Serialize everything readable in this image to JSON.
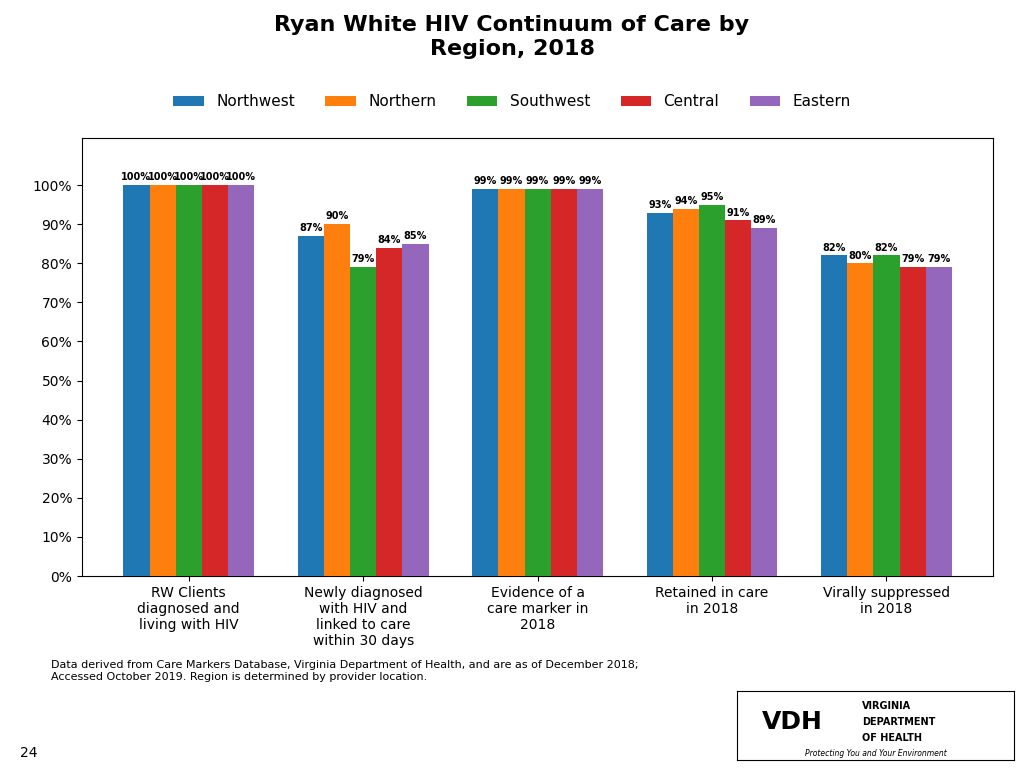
{
  "chart_data": {
    "type": "bar",
    "title": "Ryan White HIV Continuum of Care by\nRegion, 2018",
    "categories": [
      "RW Clients\ndiagnosed and\nliving with HIV",
      "Newly diagnosed\nwith HIV and\nlinked to care\nwithin 30 days",
      "Evidence of a\ncare marker in\n2018",
      "Retained in care\nin 2018",
      "Virally suppressed\nin 2018"
    ],
    "series": [
      {
        "name": "Northwest",
        "values": [
          100,
          87,
          99,
          93,
          82
        ],
        "value_labels": [
          "100%",
          "87%",
          "99%",
          "93%",
          "82%"
        ]
      },
      {
        "name": "Northern",
        "values": [
          100,
          90,
          99,
          94,
          80
        ],
        "value_labels": [
          "100%",
          "90%",
          "99%",
          "94%",
          "80%"
        ]
      },
      {
        "name": "Southwest",
        "values": [
          100,
          79,
          99,
          95,
          82
        ],
        "value_labels": [
          "100%",
          "79%",
          "99%",
          "95%",
          "82%"
        ]
      },
      {
        "name": "Central",
        "values": [
          100,
          84,
          99,
          91,
          79
        ],
        "value_labels": [
          "100%",
          "84%",
          "99%",
          "91%",
          "79%"
        ]
      },
      {
        "name": "Eastern",
        "values": [
          100,
          85,
          99,
          89,
          79
        ],
        "value_labels": [
          "100%",
          "85%",
          "99%",
          "89%",
          "79%"
        ]
      }
    ],
    "ylim": [
      0,
      112
    ],
    "yticks": [
      {
        "value": 0,
        "label": "0%"
      },
      {
        "value": 10,
        "label": "10%"
      },
      {
        "value": 20,
        "label": "20%"
      },
      {
        "value": 30,
        "label": "30%"
      },
      {
        "value": 40,
        "label": "40%"
      },
      {
        "value": 50,
        "label": "50%"
      },
      {
        "value": 60,
        "label": "60%"
      },
      {
        "value": 70,
        "label": "70%"
      },
      {
        "value": 80,
        "label": "80%"
      },
      {
        "value": 90,
        "label": "90%"
      },
      {
        "value": 100,
        "label": "100%"
      }
    ],
    "grid": false,
    "legend": "upper center",
    "data_labels": true,
    "annotations": [
      "Data derived from Care Markers Database, Virginia Department of Health, and are as of December 2018;\nAccessed October 2019. Region is determined by provider location.",
      "24",
      "VDH",
      "VIRGINIA",
      "DEPARTMENT",
      "OF HEALTH",
      "Protecting You and Your Environment"
    ]
  }
}
